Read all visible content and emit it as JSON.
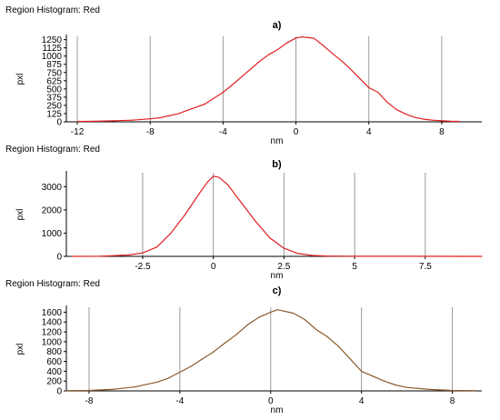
{
  "chart_data": [
    {
      "type": "line",
      "header": "Region Histogram: Red",
      "title": "a)",
      "xlabel": "nm",
      "ylabel": "pxl",
      "xlim": [
        -12.6,
        10.2
      ],
      "ylim": [
        0,
        1300
      ],
      "xticks": [
        -12,
        -8,
        -4,
        0,
        4,
        8
      ],
      "yticks": [
        0,
        125,
        250,
        375,
        500,
        625,
        750,
        875,
        1000,
        1125,
        1250
      ],
      "grid": "vertical",
      "color": "#e02020",
      "series": [
        {
          "x": [
            -12.0,
            -11.0,
            -10.0,
            -9.0,
            -8.0,
            -7.5,
            -7.0,
            -6.5,
            -6.0,
            -5.5,
            -5.0,
            -4.5,
            -4.0,
            -3.5,
            -3.0,
            -2.5,
            -2.0,
            -1.5,
            -1.0,
            -0.5,
            0.0,
            0.3,
            0.7,
            1.0,
            1.5,
            2.0,
            2.5,
            3.0,
            3.5,
            4.0,
            4.5,
            5.0,
            5.5,
            6.0,
            6.5,
            7.0,
            7.5,
            8.0,
            8.5,
            9.0
          ],
          "y": [
            5,
            8,
            15,
            25,
            45,
            60,
            90,
            120,
            170,
            220,
            270,
            360,
            450,
            560,
            680,
            800,
            920,
            1020,
            1100,
            1200,
            1275,
            1290,
            1280,
            1270,
            1160,
            1040,
            930,
            800,
            660,
            520,
            450,
            300,
            190,
            120,
            70,
            40,
            25,
            15,
            8,
            5
          ]
        }
      ]
    },
    {
      "type": "line",
      "header": "Region Histogram: Red",
      "title": "b)",
      "xlabel": "nm",
      "ylabel": "pxl",
      "xlim": [
        -5.2,
        9.5
      ],
      "ylim": [
        0,
        3600
      ],
      "xticks": [
        -2.5,
        0,
        2.5,
        5,
        7.5
      ],
      "xtick_labels": [
        "-2.5",
        "0",
        "2.5",
        "5",
        "7.5"
      ],
      "yticks": [
        0,
        1000,
        2000,
        3000
      ],
      "grid": "vertical",
      "color": "#e02020",
      "series": [
        {
          "x": [
            -5.0,
            -4.0,
            -3.0,
            -2.5,
            -2.0,
            -1.5,
            -1.0,
            -0.5,
            -0.2,
            0.0,
            0.2,
            0.5,
            1.0,
            1.5,
            2.0,
            2.5,
            3.0,
            3.5,
            4.0,
            5.0,
            7.0,
            9.5
          ],
          "y": [
            0,
            5,
            60,
            150,
            400,
            1000,
            1800,
            2700,
            3200,
            3450,
            3400,
            3100,
            2300,
            1500,
            800,
            350,
            120,
            40,
            15,
            5,
            2,
            0
          ]
        }
      ]
    },
    {
      "type": "line",
      "header": "Region Histogram: Red",
      "title": "c)",
      "xlabel": "nm",
      "ylabel": "pxl",
      "xlim": [
        -9.0,
        9.3
      ],
      "ylim": [
        0,
        1700
      ],
      "xticks": [
        -8,
        -4,
        0,
        4,
        8
      ],
      "yticks": [
        0,
        200,
        400,
        600,
        800,
        1000,
        1200,
        1400,
        1600
      ],
      "grid": "vertical",
      "color": "#8a5a2a",
      "series": [
        {
          "x": [
            -9.0,
            -8.0,
            -7.0,
            -6.0,
            -5.0,
            -4.5,
            -4.0,
            -3.5,
            -3.0,
            -2.5,
            -2.0,
            -1.5,
            -1.0,
            -0.5,
            0.0,
            0.3,
            0.6,
            1.0,
            1.5,
            2.0,
            2.5,
            3.0,
            3.5,
            4.0,
            4.5,
            5.0,
            5.5,
            6.0,
            7.0,
            8.0,
            9.0
          ],
          "y": [
            5,
            10,
            30,
            80,
            180,
            260,
            380,
            500,
            650,
            800,
            980,
            1150,
            1350,
            1500,
            1600,
            1650,
            1620,
            1580,
            1450,
            1250,
            1100,
            900,
            650,
            400,
            300,
            200,
            120,
            70,
            30,
            10,
            5
          ]
        }
      ]
    }
  ]
}
